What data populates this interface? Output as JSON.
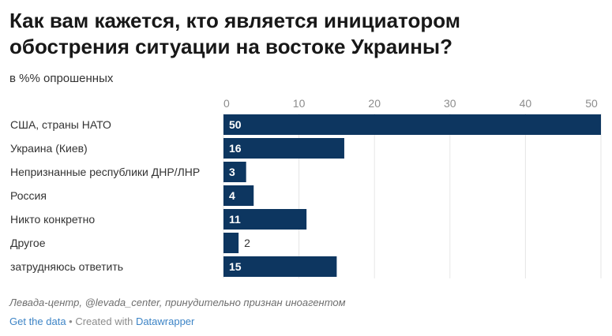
{
  "title": "Как вам кажется, кто является инициатором обострения ситуации на востоке Украины?",
  "subtitle": "в %% опрошенных",
  "source": "Левада-центр, @levada_center, принудительно признан иноагентом",
  "footer": {
    "get_data": "Get the data",
    "separator": " • Created with ",
    "datawrapper": "Datawrapper"
  },
  "colors": {
    "bar": "#0d3660",
    "grid": "#e6e6e6"
  },
  "chart_data": {
    "type": "bar",
    "orientation": "horizontal",
    "categories": [
      "США, страны НАТО",
      "Украина (Киев)",
      "Непризнанные республики ДНР/ЛНР",
      "Россия",
      "Никто конкретно",
      "Другое",
      "затрудняюсь ответить"
    ],
    "values": [
      50,
      16,
      3,
      4,
      11,
      2,
      15
    ],
    "ticks": [
      0,
      10,
      20,
      30,
      40,
      50
    ],
    "xlim": [
      0,
      50
    ],
    "title": "Как вам кажется, кто является инициатором обострения ситуации на востоке Украины?",
    "subtitle": "в %% опрошенных",
    "grid": true
  }
}
